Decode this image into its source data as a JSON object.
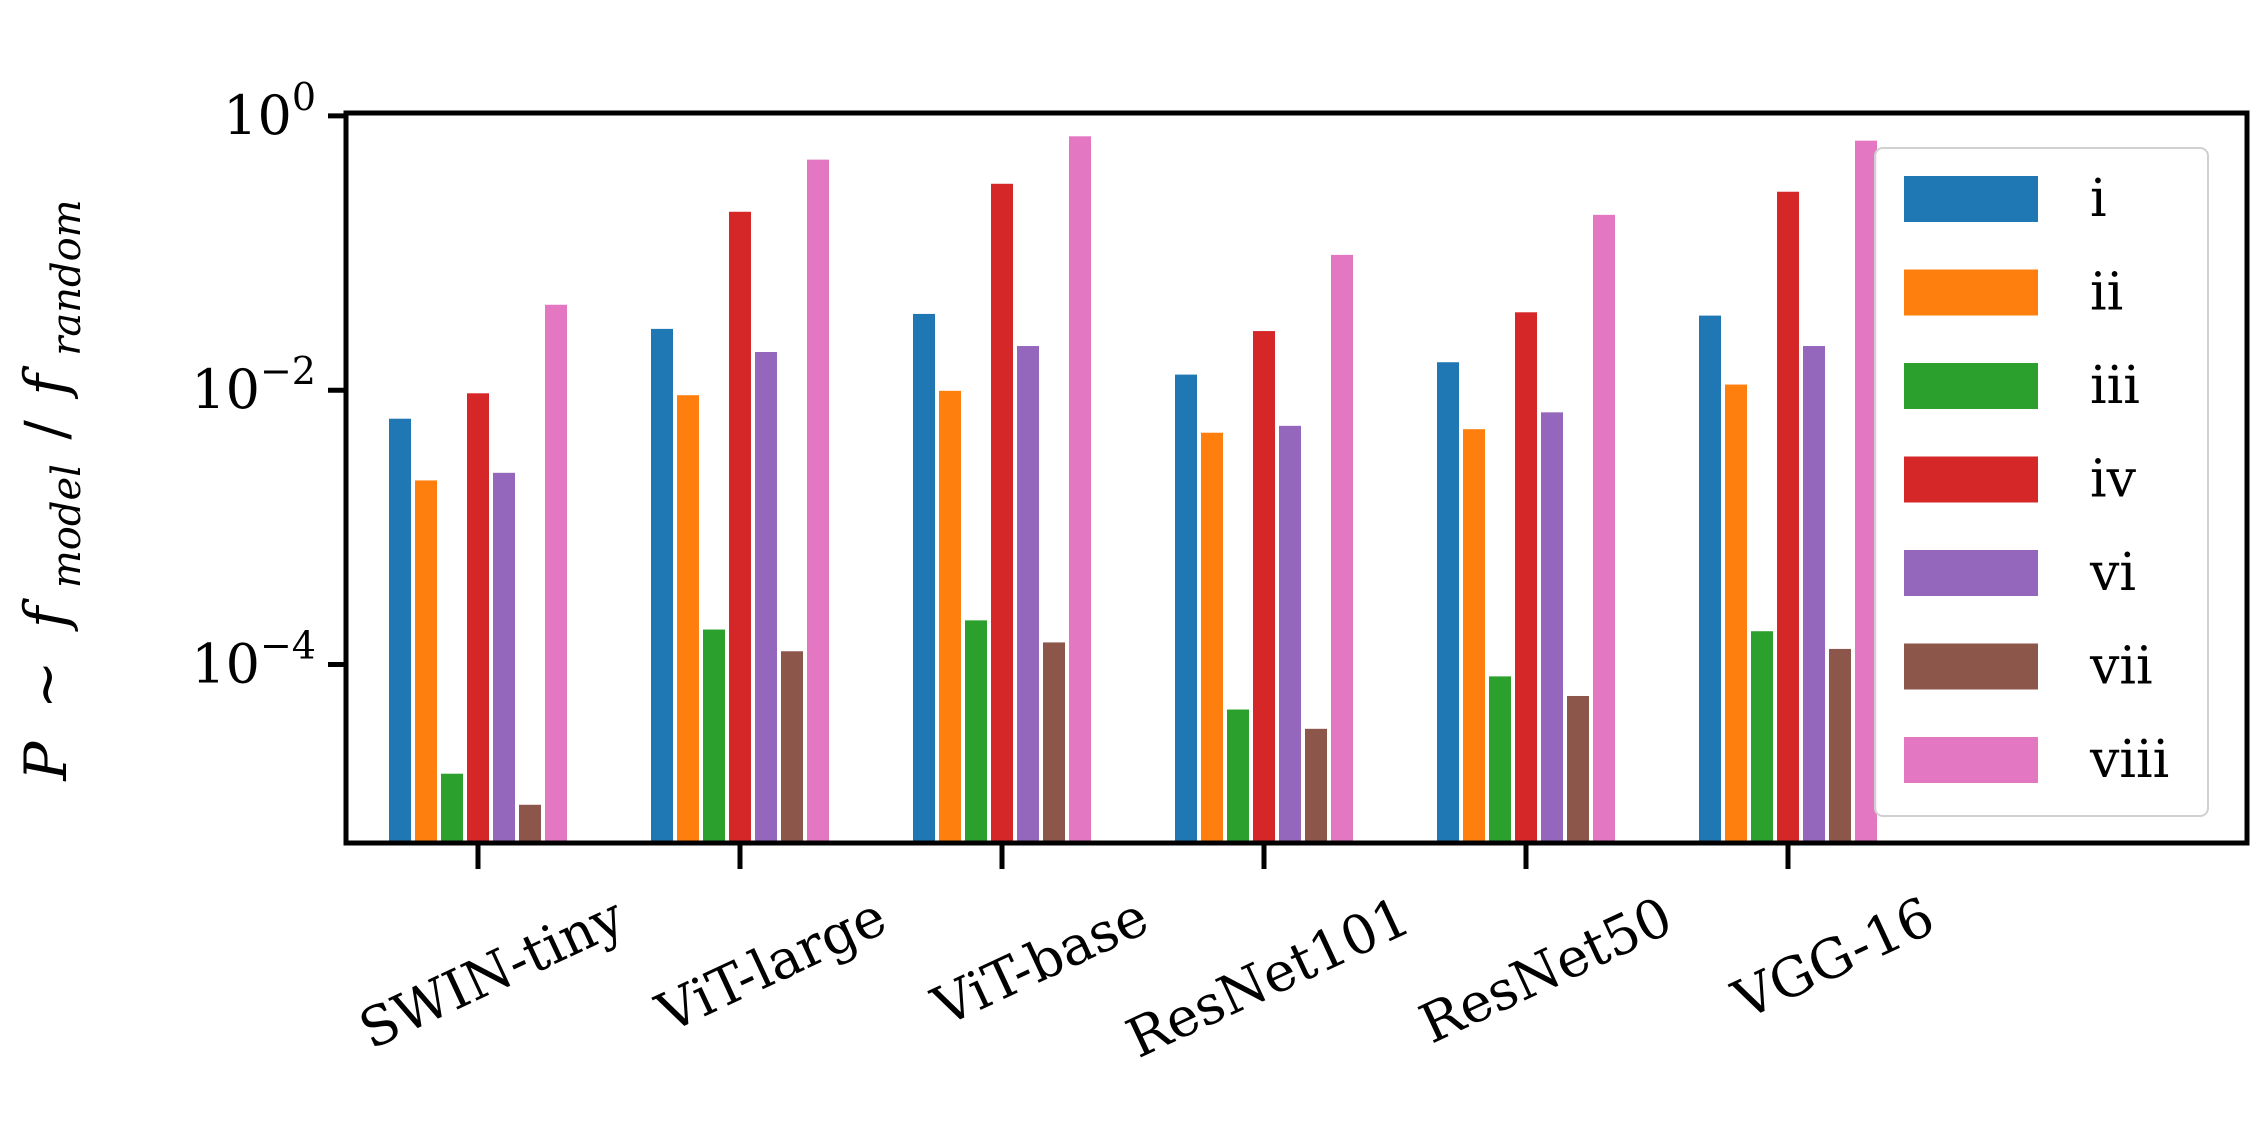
{
  "chart_data": {
    "type": "bar",
    "title": "",
    "xlabel": "",
    "ylabel": "P ~ f_model / f_random",
    "ylabel_parts": {
      "P": "P",
      "sim": "~",
      "f1": "f",
      "sub1": "model",
      "slash": "/",
      "f2": "f",
      "sub2": "random"
    },
    "yscale": "log",
    "ylim": [
      5e-06,
      1.05
    ],
    "yticks": [
      {
        "value": 1,
        "base": "10",
        "exp": "0"
      },
      {
        "value": 0.01,
        "base": "10",
        "exp": "−2"
      },
      {
        "value": 0.0001,
        "base": "10",
        "exp": "−4"
      }
    ],
    "grid": false,
    "legend_position": "top-right",
    "categories": [
      "SWIN-tiny",
      "ViT-large",
      "ViT-base",
      "ResNet101",
      "ResNet50",
      "VGG-16"
    ],
    "series": [
      {
        "name": "i",
        "color": "#1f77b4",
        "values": [
          0.0062,
          0.028,
          0.036,
          0.013,
          0.016,
          0.035
        ]
      },
      {
        "name": "ii",
        "color": "#ff7f0e",
        "values": [
          0.0022,
          0.0092,
          0.0099,
          0.0049,
          0.0052,
          0.011
        ]
      },
      {
        "name": "iii",
        "color": "#2ca02c",
        "values": [
          1.6e-05,
          0.00018,
          0.00021,
          4.7e-05,
          8.2e-05,
          0.000175
        ]
      },
      {
        "name": "iv",
        "color": "#d62728",
        "values": [
          0.0095,
          0.2,
          0.32,
          0.027,
          0.037,
          0.28
        ]
      },
      {
        "name": "vi",
        "color": "#9467bd",
        "values": [
          0.0025,
          0.019,
          0.021,
          0.0055,
          0.0069,
          0.021
        ]
      },
      {
        "name": "vii",
        "color": "#8c564b",
        "values": [
          9.5e-06,
          0.000125,
          0.000145,
          3.4e-05,
          5.9e-05,
          0.00013
        ]
      },
      {
        "name": "viii",
        "color": "#e377c2",
        "values": [
          0.042,
          0.48,
          0.71,
          0.097,
          0.19,
          0.66
        ]
      }
    ]
  }
}
